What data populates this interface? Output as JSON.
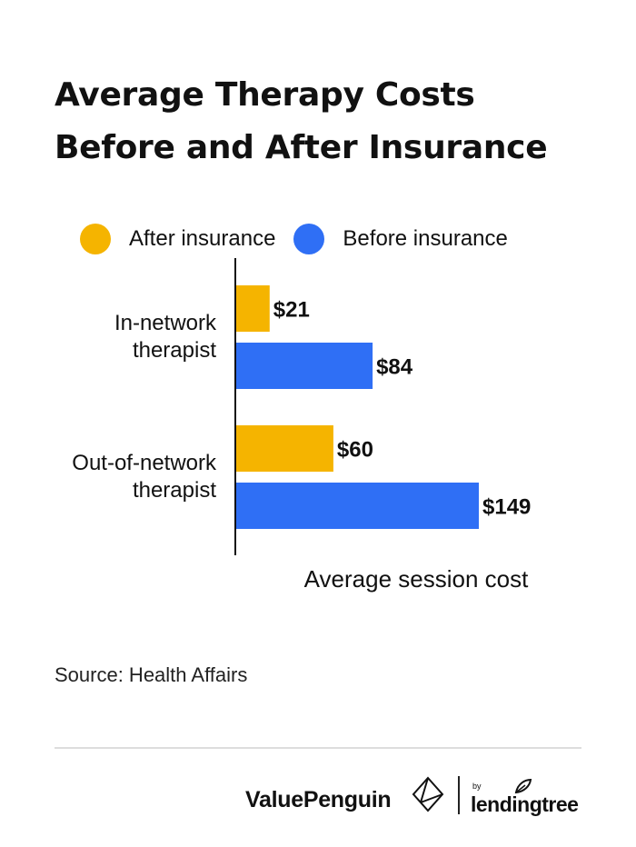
{
  "title_line1": "Average Therapy Costs",
  "title_line2": "Before and After Insurance",
  "legend": [
    {
      "label": "After insurance",
      "color": "#F5B400"
    },
    {
      "label": "Before insurance",
      "color": "#2F6FF5"
    }
  ],
  "chart_data": {
    "type": "bar",
    "orientation": "horizontal",
    "categories": [
      [
        "In-network",
        "therapist"
      ],
      [
        "Out-of-network",
        "therapist"
      ]
    ],
    "series": [
      {
        "name": "After insurance",
        "values": [
          21,
          60
        ],
        "labels": [
          "$21",
          "$60"
        ],
        "color": "#F5B400"
      },
      {
        "name": "Before insurance",
        "values": [
          84,
          149
        ],
        "labels": [
          "$84",
          "$149"
        ],
        "color": "#2F6FF5"
      }
    ],
    "title": "Average Therapy Costs Before and After Insurance",
    "xlabel": "Average session cost",
    "ylabel": "",
    "xlim": [
      0,
      149
    ],
    "grid": false,
    "legend_position": "top"
  },
  "source": "Source: Health Affairs",
  "footer": {
    "brand_primary": "ValuePenguin",
    "brand_by": "by",
    "brand_secondary": "lendingtree"
  }
}
